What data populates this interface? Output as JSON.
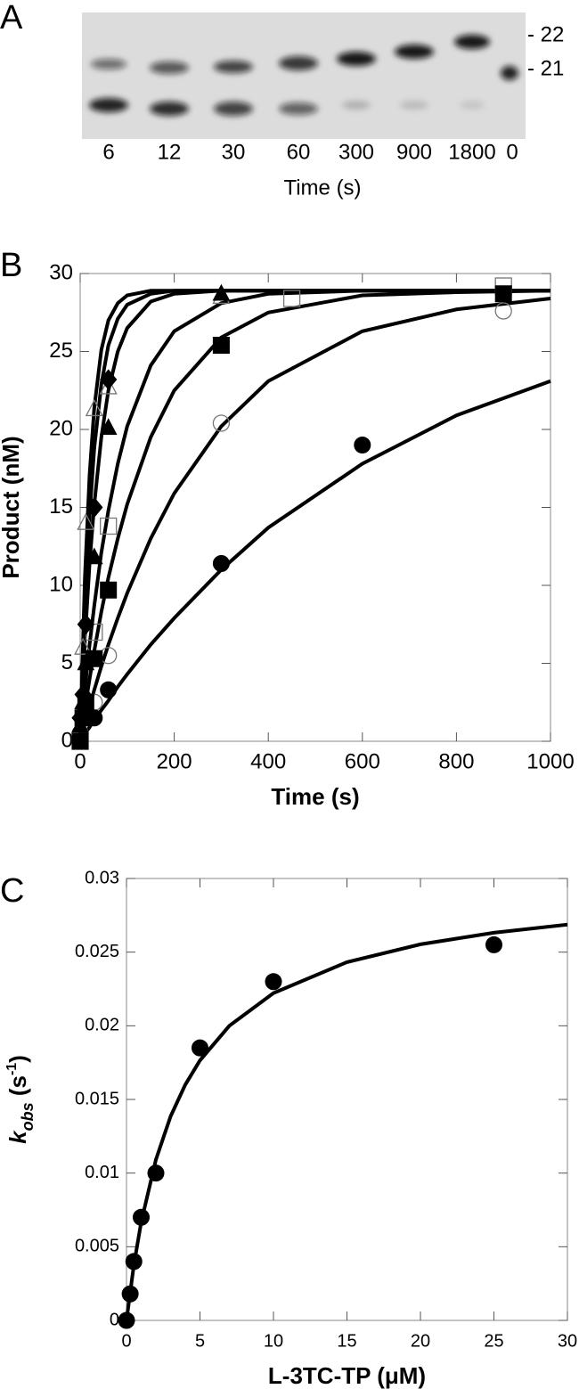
{
  "panel_labels": [
    "A",
    "B",
    "C"
  ],
  "gel": {
    "lanes": [
      "6",
      "12",
      "30",
      "60",
      "300",
      "900",
      "1800",
      "0"
    ],
    "markers": [
      "- 22",
      "- 21"
    ],
    "xlabel": "Time (s)"
  },
  "chart_data": [
    {
      "type": "scatter",
      "xlabel": "Time (s)",
      "ylabel": "Product (nM)",
      "xlim": [
        0,
        1000
      ],
      "xticks": [
        0,
        200,
        400,
        600,
        800,
        1000
      ],
      "ylim": [
        0,
        30
      ],
      "yticks": [
        0,
        5,
        10,
        15,
        20,
        25,
        30
      ],
      "color": "#000000",
      "fits": [
        {
          "x": [
            0,
            10,
            20,
            30,
            45,
            60,
            80,
            100,
            150,
            200,
            300,
            400,
            600,
            800,
            1000
          ],
          "values": [
            0,
            0.5,
            0.9,
            1.4,
            2.0,
            2.6,
            3.5,
            4.3,
            6.2,
            7.9,
            11.0,
            13.7,
            17.8,
            20.9,
            23.1
          ]
        },
        {
          "x": [
            0,
            10,
            20,
            30,
            45,
            60,
            80,
            100,
            150,
            200,
            300,
            400,
            600,
            800,
            1000
          ],
          "values": [
            0,
            1.1,
            2.2,
            3.3,
            4.8,
            6.2,
            7.9,
            9.5,
            13.0,
            15.9,
            20.2,
            23.1,
            26.3,
            27.7,
            28.4
          ]
        },
        {
          "x": [
            0,
            10,
            20,
            30,
            45,
            60,
            80,
            100,
            150,
            200,
            300,
            400,
            600,
            800,
            1000
          ],
          "values": [
            0,
            2.1,
            4.0,
            5.8,
            8.3,
            10.5,
            13.0,
            15.2,
            19.5,
            22.5,
            25.9,
            27.5,
            28.6,
            28.8,
            28.9
          ]
        },
        {
          "x": [
            0,
            10,
            20,
            30,
            45,
            60,
            80,
            100,
            150,
            200,
            300,
            400,
            600,
            800,
            1000
          ],
          "values": [
            0,
            3.3,
            6.2,
            8.7,
            12.1,
            14.8,
            17.8,
            20.2,
            24.1,
            26.3,
            28.1,
            28.7,
            28.9,
            28.9,
            28.9
          ]
        },
        {
          "x": [
            0,
            10,
            20,
            30,
            45,
            60,
            80,
            100,
            150,
            200,
            300,
            400,
            600,
            800,
            1000
          ],
          "values": [
            0,
            6.4,
            11.4,
            15.2,
            19.5,
            22.5,
            25.0,
            26.5,
            28.2,
            28.7,
            28.9,
            28.9,
            28.9,
            28.9,
            28.9
          ]
        },
        {
          "x": [
            0,
            10,
            20,
            30,
            45,
            60,
            80,
            100,
            150,
            200,
            300,
            400,
            600,
            800,
            1000
          ],
          "values": [
            0,
            8.5,
            14.5,
            18.8,
            22.9,
            25.4,
            27.1,
            28.0,
            28.7,
            28.9,
            28.9,
            28.9,
            28.9,
            28.9,
            28.9
          ]
        },
        {
          "x": [
            0,
            10,
            20,
            30,
            45,
            60,
            80,
            100,
            150,
            200,
            300,
            400,
            600,
            800,
            1000
          ],
          "values": [
            0,
            10.5,
            17.1,
            21.4,
            25.1,
            27.0,
            28.1,
            28.6,
            28.9,
            28.9,
            28.9,
            28.9,
            28.9,
            28.9,
            28.9
          ]
        }
      ],
      "series": [
        {
          "marker": "circle",
          "filled": false,
          "x": [
            0,
            30,
            60,
            300,
            900
          ],
          "values": [
            0.5,
            2.5,
            5.5,
            20.4,
            27.6
          ]
        },
        {
          "marker": "square",
          "filled": false,
          "x": [
            0,
            30,
            60,
            450,
            900
          ],
          "values": [
            0,
            7,
            13.8,
            28.4,
            29.2
          ]
        },
        {
          "marker": "triangle",
          "filled": false,
          "x": [
            6,
            12,
            30,
            60,
            300
          ],
          "values": [
            6,
            14,
            21.3,
            22.7,
            28.5
          ]
        },
        {
          "marker": "circle",
          "filled": true,
          "x": [
            0,
            30,
            60,
            300,
            600
          ],
          "values": [
            0,
            1.5,
            3.3,
            11.4,
            19.0
          ]
        },
        {
          "marker": "square",
          "filled": true,
          "x": [
            0,
            6,
            12,
            30,
            60,
            300,
            900
          ],
          "values": [
            0,
            1.5,
            2.5,
            5.3,
            9.7,
            25.4,
            28.7
          ]
        },
        {
          "marker": "triangle",
          "filled": true,
          "x": [
            0,
            6,
            12,
            30,
            60,
            300
          ],
          "values": [
            1,
            2.5,
            5,
            11.8,
            20.1,
            28.7
          ]
        },
        {
          "marker": "diamond",
          "filled": true,
          "x": [
            0,
            6,
            12,
            30,
            60
          ],
          "values": [
            1.5,
            3,
            7.5,
            15,
            23.2
          ]
        }
      ]
    },
    {
      "type": "scatter",
      "xlabel": "L-3TC-TP (μM)",
      "ylabel": [
        "k",
        "obs",
        " (s",
        "-1",
        ")"
      ],
      "xlim": [
        0,
        30
      ],
      "xticks": [
        0,
        5,
        10,
        15,
        20,
        25,
        30
      ],
      "ylim": [
        0,
        0.03
      ],
      "yticks": [
        0,
        0.005,
        0.01,
        0.015,
        0.02,
        0.025,
        0.03
      ],
      "color": "#000000",
      "fits": [
        {
          "x": [
            0,
            0.5,
            1,
            2,
            3,
            4,
            5,
            7,
            10,
            15,
            20,
            25,
            30
          ],
          "values": [
            0,
            0.00375,
            0.00667,
            0.01091,
            0.01385,
            0.016,
            0.01765,
            0.02,
            0.02222,
            0.02432,
            0.02553,
            0.02632,
            0.02687
          ]
        }
      ],
      "series": [
        {
          "marker": "circle",
          "filled": true,
          "x": [
            0,
            0.25,
            0.5,
            1,
            2,
            5,
            10,
            25
          ],
          "values": [
            0,
            0.0018,
            0.004,
            0.007,
            0.01,
            0.0185,
            0.023,
            0.0255
          ]
        }
      ]
    }
  ]
}
